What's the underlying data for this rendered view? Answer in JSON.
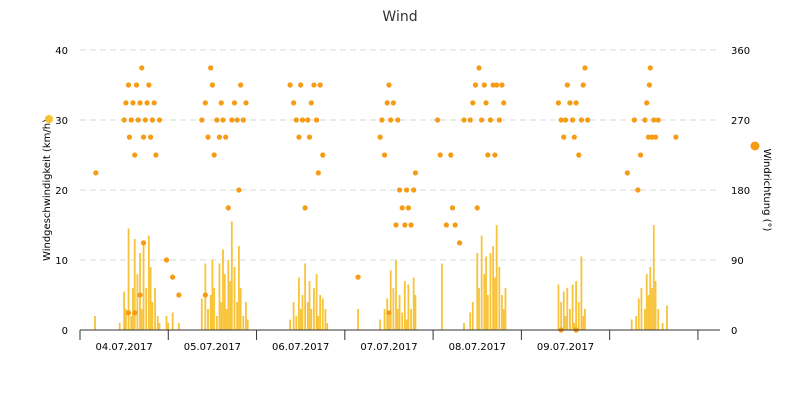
{
  "chart_data": {
    "type": "bar",
    "title": "Wind",
    "y_left_label": "Windgeschwindigkeit (km/h)",
    "y_right_label": "Windrichtung (°)",
    "y_left_ticks": [
      "0",
      "10",
      "20",
      "30",
      "40"
    ],
    "y_right_ticks": [
      "0",
      "90",
      "180",
      "270",
      "360"
    ],
    "ylim_left": [
      0,
      40
    ],
    "ylim_right": [
      0,
      360
    ],
    "x_domain_days": [
      0,
      7.25
    ],
    "x_ticks": [
      {
        "label": "04.07.2017",
        "day": 0.5
      },
      {
        "label": "05.07.2017",
        "day": 1.5
      },
      {
        "label": "06.07.2017",
        "day": 2.5
      },
      {
        "label": "07.07.2017",
        "day": 3.5
      },
      {
        "label": "08.07.2017",
        "day": 4.5
      },
      {
        "label": "09.07.2017",
        "day": 5.5
      }
    ],
    "grid": true,
    "colors": {
      "speed_bar": "#f7c33a",
      "direction_dot": "#f79b14",
      "axis": "#333333"
    },
    "legend_markers": {
      "left": "#f7c32b",
      "right": "#f79b14"
    },
    "series": [
      {
        "axis": "left",
        "kind": "bar",
        "values": [
          [
            0.17,
            2
          ],
          [
            0.45,
            1
          ],
          [
            0.5,
            5.5
          ],
          [
            0.52,
            3
          ],
          [
            0.55,
            14.5
          ],
          [
            0.58,
            2
          ],
          [
            0.6,
            6
          ],
          [
            0.62,
            13
          ],
          [
            0.65,
            8
          ],
          [
            0.68,
            11
          ],
          [
            0.7,
            3
          ],
          [
            0.72,
            12.5
          ],
          [
            0.75,
            6
          ],
          [
            0.78,
            13.5
          ],
          [
            0.8,
            9
          ],
          [
            0.82,
            4
          ],
          [
            0.85,
            6
          ],
          [
            0.88,
            2
          ],
          [
            0.9,
            1
          ],
          [
            0.98,
            2
          ],
          [
            1.0,
            1
          ],
          [
            1.05,
            2.5
          ],
          [
            1.12,
            1
          ],
          [
            1.38,
            4.5
          ],
          [
            1.42,
            9.5
          ],
          [
            1.45,
            3
          ],
          [
            1.48,
            5
          ],
          [
            1.5,
            10
          ],
          [
            1.52,
            6
          ],
          [
            1.55,
            2
          ],
          [
            1.58,
            9.5
          ],
          [
            1.6,
            4
          ],
          [
            1.62,
            11.5
          ],
          [
            1.64,
            8
          ],
          [
            1.66,
            3
          ],
          [
            1.68,
            10
          ],
          [
            1.7,
            7
          ],
          [
            1.72,
            15.5
          ],
          [
            1.75,
            9
          ],
          [
            1.78,
            4
          ],
          [
            1.8,
            12
          ],
          [
            1.82,
            6
          ],
          [
            1.85,
            2
          ],
          [
            1.88,
            4
          ],
          [
            1.9,
            1.5
          ],
          [
            2.38,
            1.5
          ],
          [
            2.42,
            4
          ],
          [
            2.45,
            2
          ],
          [
            2.48,
            7.5
          ],
          [
            2.5,
            3
          ],
          [
            2.52,
            5
          ],
          [
            2.55,
            9.5
          ],
          [
            2.58,
            4
          ],
          [
            2.6,
            7
          ],
          [
            2.62,
            3
          ],
          [
            2.65,
            6
          ],
          [
            2.68,
            8
          ],
          [
            2.7,
            2
          ],
          [
            2.72,
            5
          ],
          [
            2.75,
            4.5
          ],
          [
            2.78,
            3
          ],
          [
            2.8,
            1
          ],
          [
            3.15,
            3
          ],
          [
            3.4,
            1.5
          ],
          [
            3.45,
            3
          ],
          [
            3.48,
            4.5
          ],
          [
            3.5,
            2
          ],
          [
            3.52,
            8.5
          ],
          [
            3.55,
            6
          ],
          [
            3.58,
            10
          ],
          [
            3.6,
            3
          ],
          [
            3.62,
            5
          ],
          [
            3.65,
            2.5
          ],
          [
            3.68,
            7
          ],
          [
            3.7,
            1.5
          ],
          [
            3.72,
            6.5
          ],
          [
            3.75,
            3
          ],
          [
            3.78,
            7.5
          ],
          [
            3.8,
            5
          ],
          [
            4.1,
            9.5
          ],
          [
            4.35,
            1
          ],
          [
            4.42,
            2.5
          ],
          [
            4.45,
            4
          ],
          [
            4.5,
            11
          ],
          [
            4.52,
            6
          ],
          [
            4.55,
            13.5
          ],
          [
            4.58,
            8
          ],
          [
            4.6,
            10.5
          ],
          [
            4.62,
            5
          ],
          [
            4.65,
            11
          ],
          [
            4.68,
            12
          ],
          [
            4.7,
            7.5
          ],
          [
            4.72,
            15
          ],
          [
            4.75,
            9
          ],
          [
            4.78,
            5
          ],
          [
            4.8,
            3
          ],
          [
            4.82,
            6
          ],
          [
            5.42,
            6.5
          ],
          [
            5.45,
            4
          ],
          [
            5.48,
            5.5
          ],
          [
            5.5,
            2
          ],
          [
            5.52,
            6
          ],
          [
            5.55,
            3
          ],
          [
            5.58,
            6.5
          ],
          [
            5.6,
            1
          ],
          [
            5.62,
            7
          ],
          [
            5.65,
            4
          ],
          [
            5.68,
            10.5
          ],
          [
            5.7,
            2
          ],
          [
            5.72,
            3
          ],
          [
            6.25,
            1.5
          ],
          [
            6.3,
            2
          ],
          [
            6.33,
            4.5
          ],
          [
            6.36,
            6
          ],
          [
            6.4,
            3
          ],
          [
            6.42,
            8
          ],
          [
            6.44,
            5
          ],
          [
            6.46,
            9
          ],
          [
            6.48,
            6
          ],
          [
            6.5,
            15
          ],
          [
            6.52,
            7
          ],
          [
            6.55,
            3
          ],
          [
            6.6,
            1
          ],
          [
            6.65,
            3.5
          ]
        ]
      },
      {
        "axis": "right",
        "kind": "scatter",
        "values": [
          [
            0.18,
            202
          ],
          [
            0.5,
            270
          ],
          [
            0.52,
            292
          ],
          [
            0.55,
            315
          ],
          [
            0.56,
            248
          ],
          [
            0.58,
            270
          ],
          [
            0.6,
            292
          ],
          [
            0.62,
            225
          ],
          [
            0.64,
            315
          ],
          [
            0.66,
            270
          ],
          [
            0.68,
            292
          ],
          [
            0.7,
            337
          ],
          [
            0.72,
            248
          ],
          [
            0.74,
            270
          ],
          [
            0.76,
            292
          ],
          [
            0.78,
            315
          ],
          [
            0.8,
            248
          ],
          [
            0.82,
            270
          ],
          [
            0.84,
            292
          ],
          [
            0.86,
            225
          ],
          [
            0.9,
            270
          ],
          [
            0.55,
            22
          ],
          [
            0.62,
            22
          ],
          [
            0.68,
            45
          ],
          [
            0.72,
            112
          ],
          [
            0.98,
            90
          ],
          [
            1.05,
            68
          ],
          [
            1.12,
            45
          ],
          [
            1.38,
            270
          ],
          [
            1.42,
            292
          ],
          [
            1.45,
            248
          ],
          [
            1.48,
            337
          ],
          [
            1.5,
            315
          ],
          [
            1.52,
            225
          ],
          [
            1.55,
            270
          ],
          [
            1.58,
            248
          ],
          [
            1.6,
            292
          ],
          [
            1.62,
            270
          ],
          [
            1.65,
            248
          ],
          [
            1.68,
            157
          ],
          [
            1.72,
            270
          ],
          [
            1.75,
            292
          ],
          [
            1.78,
            270
          ],
          [
            1.8,
            180
          ],
          [
            1.82,
            315
          ],
          [
            1.85,
            270
          ],
          [
            1.88,
            292
          ],
          [
            1.42,
            45
          ],
          [
            2.38,
            315
          ],
          [
            2.42,
            292
          ],
          [
            2.45,
            270
          ],
          [
            2.48,
            248
          ],
          [
            2.5,
            315
          ],
          [
            2.52,
            270
          ],
          [
            2.55,
            157
          ],
          [
            2.58,
            270
          ],
          [
            2.6,
            248
          ],
          [
            2.62,
            292
          ],
          [
            2.65,
            315
          ],
          [
            2.68,
            270
          ],
          [
            2.7,
            202
          ],
          [
            2.72,
            315
          ],
          [
            2.75,
            225
          ],
          [
            3.15,
            68
          ],
          [
            3.4,
            248
          ],
          [
            3.42,
            270
          ],
          [
            3.45,
            225
          ],
          [
            3.48,
            292
          ],
          [
            3.5,
            315
          ],
          [
            3.52,
            270
          ],
          [
            3.55,
            292
          ],
          [
            3.58,
            135
          ],
          [
            3.6,
            270
          ],
          [
            3.62,
            180
          ],
          [
            3.65,
            157
          ],
          [
            3.68,
            135
          ],
          [
            3.7,
            180
          ],
          [
            3.72,
            157
          ],
          [
            3.75,
            135
          ],
          [
            3.78,
            180
          ],
          [
            3.8,
            202
          ],
          [
            3.5,
            22
          ],
          [
            4.05,
            270
          ],
          [
            4.08,
            225
          ],
          [
            4.15,
            135
          ],
          [
            4.2,
            225
          ],
          [
            4.22,
            157
          ],
          [
            4.25,
            135
          ],
          [
            4.3,
            112
          ],
          [
            4.35,
            270
          ],
          [
            4.42,
            270
          ],
          [
            4.45,
            292
          ],
          [
            4.48,
            315
          ],
          [
            4.5,
            157
          ],
          [
            4.52,
            337
          ],
          [
            4.55,
            270
          ],
          [
            4.58,
            315
          ],
          [
            4.6,
            292
          ],
          [
            4.62,
            225
          ],
          [
            4.65,
            270
          ],
          [
            4.68,
            315
          ],
          [
            4.7,
            225
          ],
          [
            4.72,
            315
          ],
          [
            4.75,
            270
          ],
          [
            4.78,
            315
          ],
          [
            4.8,
            292
          ],
          [
            5.42,
            292
          ],
          [
            5.45,
            270
          ],
          [
            5.48,
            248
          ],
          [
            5.5,
            270
          ],
          [
            5.52,
            315
          ],
          [
            5.55,
            292
          ],
          [
            5.58,
            270
          ],
          [
            5.6,
            248
          ],
          [
            5.62,
            292
          ],
          [
            5.65,
            225
          ],
          [
            5.68,
            270
          ],
          [
            5.7,
            315
          ],
          [
            5.72,
            337
          ],
          [
            5.75,
            270
          ],
          [
            5.45,
            0
          ],
          [
            5.62,
            0
          ],
          [
            6.2,
            202
          ],
          [
            6.28,
            270
          ],
          [
            6.32,
            180
          ],
          [
            6.35,
            225
          ],
          [
            6.4,
            270
          ],
          [
            6.42,
            292
          ],
          [
            6.44,
            248
          ],
          [
            6.45,
            315
          ],
          [
            6.46,
            337
          ],
          [
            6.48,
            248
          ],
          [
            6.5,
            270
          ],
          [
            6.52,
            248
          ],
          [
            6.55,
            270
          ],
          [
            6.75,
            248
          ]
        ]
      }
    ]
  }
}
